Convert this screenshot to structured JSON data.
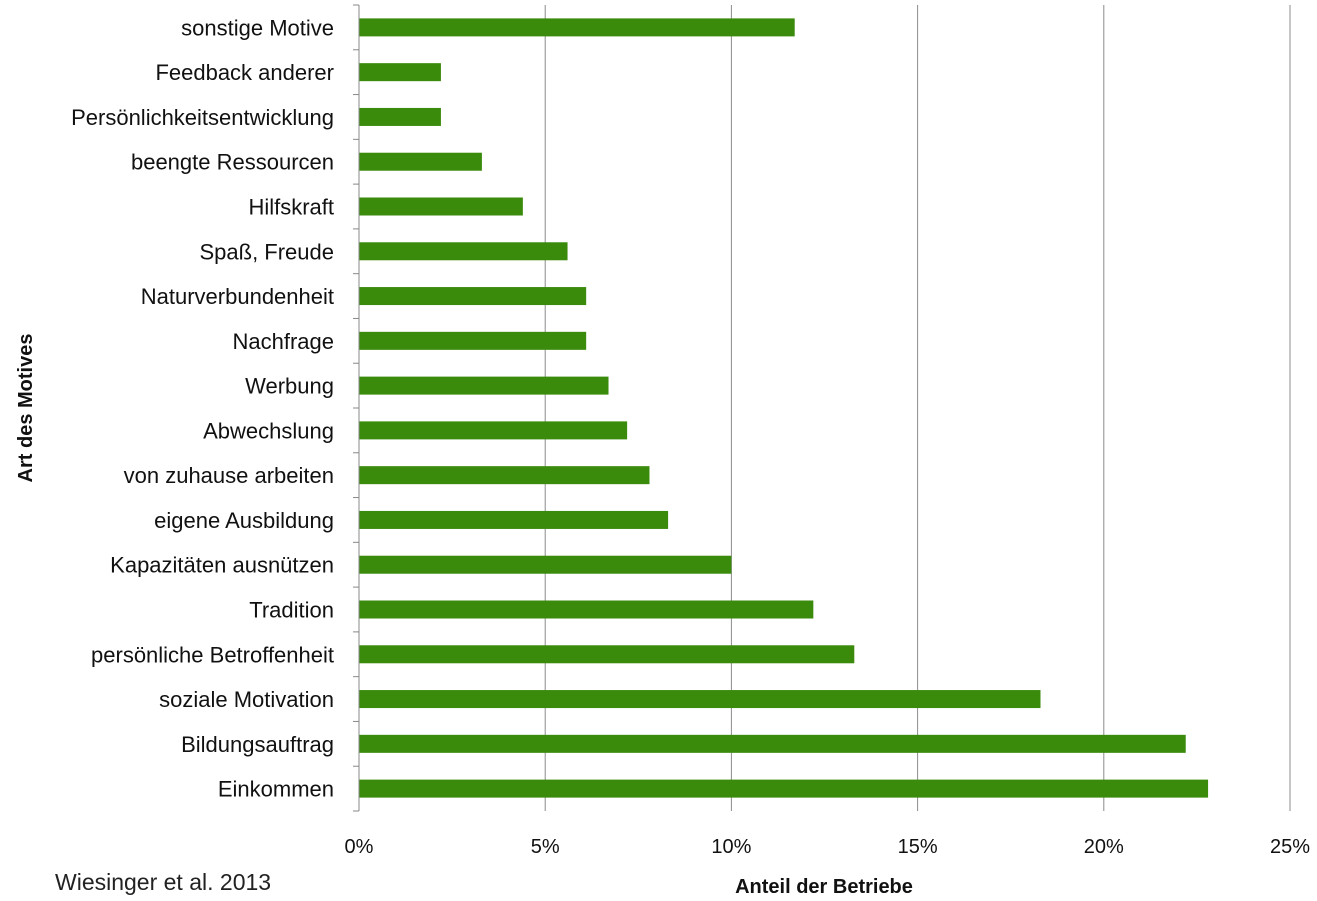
{
  "chart_data": {
    "type": "bar",
    "orientation": "horizontal",
    "categories": [
      "sonstige Motive",
      "Feedback anderer",
      "Persönlichkeitsentwicklung",
      "beengte Ressourcen",
      "Hilfskraft",
      "Spaß, Freude",
      "Naturverbundenheit",
      "Nachfrage",
      "Werbung",
      "Abwechslung",
      "von zuhause arbeiten",
      "eigene Ausbildung",
      "Kapazitäten ausnützen",
      "Tradition",
      "persönliche Betroffenheit",
      "soziale Motivation",
      "Bildungsauftrag",
      "Einkommen"
    ],
    "values": [
      11.7,
      2.2,
      2.2,
      3.3,
      4.4,
      5.6,
      6.1,
      6.1,
      6.7,
      7.2,
      7.8,
      8.3,
      10.0,
      12.2,
      13.3,
      18.3,
      22.2,
      22.8
    ],
    "xlabel": "Anteil  der Betriebe",
    "ylabel": "Art des Motives",
    "xlim": [
      0,
      25
    ],
    "xticks": [
      0,
      5,
      10,
      15,
      20,
      25
    ],
    "xtick_labels": [
      "0%",
      "5%",
      "10%",
      "15%",
      "20%",
      "25%"
    ],
    "grid": "vertical",
    "bar_color": "#3a8a0b",
    "source": "Wiesinger et al. 2013"
  }
}
